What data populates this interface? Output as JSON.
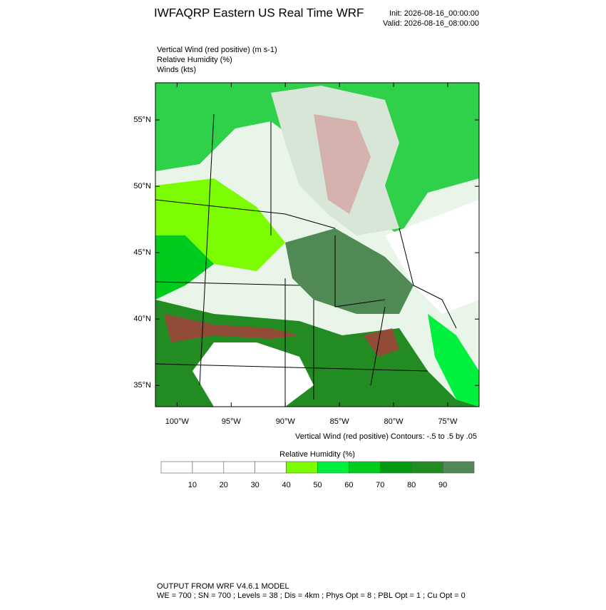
{
  "header": {
    "title": "IWFAQRP Eastern US Real Time WRF",
    "init": "Init: 2026-08-16_00:00:00",
    "valid": "Valid: 2026-08-16_08:00:00"
  },
  "fields": [
    "Vertical Wind (red positive)   (m s-1)",
    "Relative Humidity   (%)",
    "Winds   (kts)"
  ],
  "map": {
    "xlim": [
      -102,
      -72.1
    ],
    "ylim": [
      33.4,
      57.8
    ],
    "xticks": [
      {
        "value": -100,
        "label": "100°W"
      },
      {
        "value": -95,
        "label": "95°W"
      },
      {
        "value": -90,
        "label": "90°W"
      },
      {
        "value": -85,
        "label": "85°W"
      },
      {
        "value": -80,
        "label": "80°W"
      },
      {
        "value": -75,
        "label": "75°W"
      }
    ],
    "yticks": [
      {
        "value": 35,
        "label": "35°N"
      },
      {
        "value": 40,
        "label": "40°N"
      },
      {
        "value": 45,
        "label": "45°N"
      },
      {
        "value": 50,
        "label": "50°N"
      },
      {
        "value": 55,
        "label": "55°N"
      }
    ],
    "contour_note": "Vertical Wind (red positive) Contours: -.5 to .5 by .05"
  },
  "colorbar": {
    "title": "Relative Humidity  (%)",
    "levels": [
      10,
      20,
      30,
      40,
      50,
      60,
      70,
      80,
      90
    ],
    "colors": [
      "#ffffff",
      "#ffffff",
      "#ffffff",
      "#ffffff",
      "#7cfc00",
      "#00f040",
      "#00cc1e",
      "#009a10",
      "#228b22",
      "#4f8a55"
    ]
  },
  "footer": [
    "OUTPUT FROM WRF V4.6.1 MODEL",
    "WE = 700 ; SN = 700 ; Levels = 38 ; Dis = 4km ; Phys Opt = 8 ; PBL Opt = 1 ; Cu Opt = 0"
  ]
}
